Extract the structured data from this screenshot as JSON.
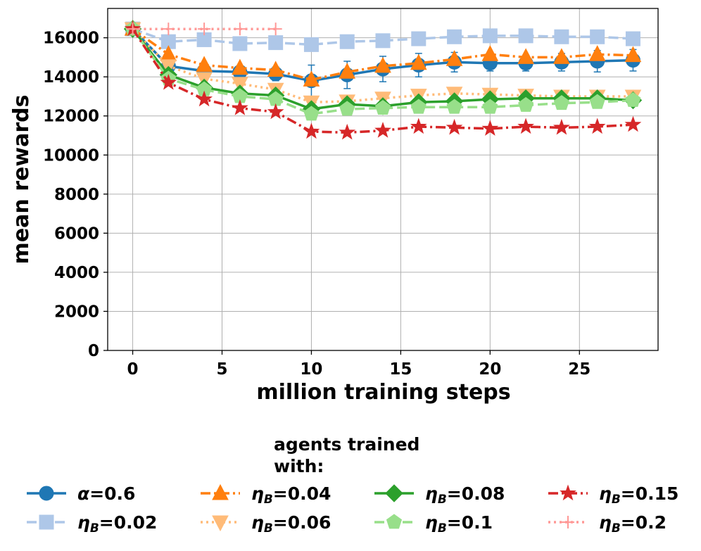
{
  "chart_data": {
    "type": "line",
    "title": "",
    "xlabel": "million training steps",
    "ylabel": "mean rewards",
    "xlim": [
      -1.4,
      29.4
    ],
    "ylim": [
      0,
      17500
    ],
    "xticks": [
      0,
      5,
      10,
      15,
      20,
      25
    ],
    "yticks": [
      0,
      2000,
      4000,
      6000,
      8000,
      10000,
      12000,
      14000,
      16000
    ],
    "grid": true,
    "legend_title_line1": "agents trained",
    "legend_title_line2": "with:",
    "legend_placement": "below",
    "series": [
      {
        "name": "α=0.6",
        "label_main": "α",
        "label_sub": "",
        "label_value": "=0.6",
        "color": "#1f77b4",
        "marker": "circle",
        "dash": "solid",
        "x": [
          0,
          2,
          4,
          6,
          8,
          10,
          12,
          14,
          16,
          18,
          20,
          22,
          24,
          26,
          28
        ],
        "y": [
          16450,
          14550,
          14300,
          14250,
          14150,
          13800,
          14100,
          14400,
          14600,
          14750,
          14700,
          14700,
          14750,
          14800,
          14850
        ],
        "err": [
          0,
          300,
          200,
          250,
          350,
          800,
          700,
          650,
          600,
          500,
          400,
          400,
          450,
          550,
          550
        ]
      },
      {
        "name": "ηB=0.02",
        "label_main": "η",
        "label_sub": "B",
        "label_value": "=0.02",
        "color": "#aec7e8",
        "marker": "square",
        "dash": "dashed",
        "x": [
          0,
          2,
          4,
          6,
          8,
          10,
          12,
          14,
          16,
          18,
          20,
          22,
          24,
          26,
          28
        ],
        "y": [
          16450,
          15800,
          15900,
          15700,
          15750,
          15650,
          15800,
          15850,
          15950,
          16050,
          16100,
          16100,
          16050,
          16050,
          15950
        ],
        "err": []
      },
      {
        "name": "ηB=0.04",
        "label_main": "η",
        "label_sub": "B",
        "label_value": "=0.04",
        "color": "#ff7f0e",
        "marker": "triangle-up",
        "dash": "dashdot",
        "x": [
          0,
          2,
          4,
          6,
          8,
          10,
          12,
          14,
          16,
          18,
          20,
          22,
          24,
          26,
          28
        ],
        "y": [
          16450,
          15150,
          14600,
          14450,
          14350,
          13850,
          14250,
          14550,
          14700,
          14900,
          15150,
          15000,
          15000,
          15150,
          15100
        ],
        "err": []
      },
      {
        "name": "ηB=0.06",
        "label_main": "η",
        "label_sub": "B",
        "label_value": "=0.06",
        "color": "#ffbb78",
        "marker": "triangle-down",
        "dash": "dotted",
        "x": [
          0,
          2,
          4,
          6,
          8,
          10,
          12,
          14,
          16,
          18,
          20,
          22,
          24,
          26,
          28
        ],
        "y": [
          16450,
          14550,
          13900,
          13650,
          13350,
          12700,
          12750,
          12900,
          13050,
          13150,
          13100,
          13050,
          13000,
          13000,
          13000
        ],
        "err": []
      },
      {
        "name": "ηB=0.08",
        "label_main": "η",
        "label_sub": "B",
        "label_value": "=0.08",
        "color": "#2ca02c",
        "marker": "diamond",
        "dash": "solid",
        "x": [
          0,
          2,
          4,
          6,
          8,
          10,
          12,
          14,
          16,
          18,
          20,
          22,
          24,
          26,
          28
        ],
        "y": [
          16450,
          14100,
          13450,
          13150,
          13050,
          12350,
          12600,
          12500,
          12700,
          12750,
          12850,
          12900,
          12900,
          12900,
          12800
        ],
        "err": []
      },
      {
        "name": "ηB=0.1",
        "label_main": "η",
        "label_sub": "B",
        "label_value": "=0.1",
        "color": "#98df8a",
        "marker": "pentagon",
        "dash": "dashed",
        "x": [
          0,
          2,
          4,
          6,
          8,
          10,
          12,
          14,
          16,
          18,
          20,
          22,
          24,
          26,
          28
        ],
        "y": [
          16450,
          13900,
          13350,
          13000,
          12850,
          12100,
          12350,
          12400,
          12450,
          12450,
          12450,
          12550,
          12650,
          12700,
          12800
        ],
        "err": []
      },
      {
        "name": "ηB=0.15",
        "label_main": "η",
        "label_sub": "B",
        "label_value": "=0.15",
        "color": "#d62728",
        "marker": "star",
        "dash": "dashdot",
        "x": [
          0,
          2,
          4,
          6,
          8,
          10,
          12,
          14,
          16,
          18,
          20,
          22,
          24,
          26,
          28
        ],
        "y": [
          16450,
          13700,
          12850,
          12400,
          12200,
          11200,
          11150,
          11250,
          11450,
          11400,
          11350,
          11450,
          11400,
          11450,
          11550
        ],
        "err": []
      },
      {
        "name": "ηB=0.2",
        "label_main": "η",
        "label_sub": "B",
        "label_value": "=0.2",
        "color": "#ff9896",
        "marker": "plus",
        "dash": "dotted",
        "x": [
          0,
          2,
          4,
          6,
          8
        ],
        "y": [
          16450,
          16450,
          16450,
          16450,
          16450
        ],
        "err": []
      }
    ]
  }
}
